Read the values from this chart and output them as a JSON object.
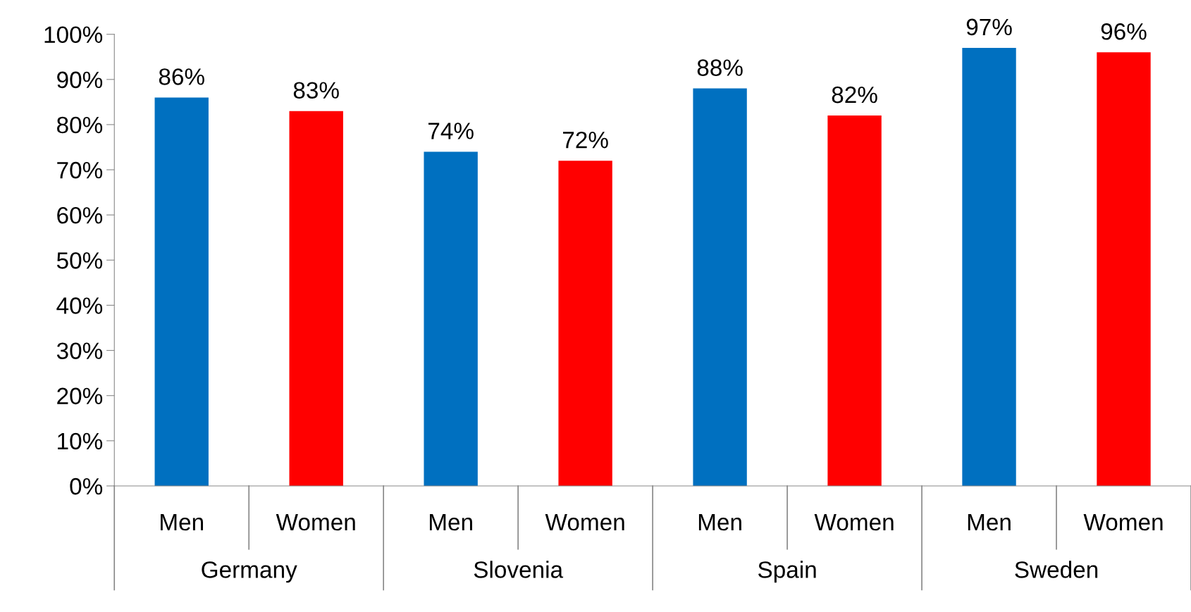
{
  "chart_data": {
    "type": "bar",
    "categories": [
      "Men",
      "Women",
      "Men",
      "Women",
      "Men",
      "Women",
      "Men",
      "Women"
    ],
    "values": [
      86,
      83,
      74,
      72,
      88,
      82,
      97,
      96
    ],
    "colors": [
      "#0070c0",
      "#ff0000",
      "#0070c0",
      "#ff0000",
      "#0070c0",
      "#ff0000",
      "#0070c0",
      "#ff0000"
    ],
    "value_labels": [
      "86%",
      "83%",
      "74%",
      "72%",
      "88%",
      "82%",
      "97%",
      "96%"
    ],
    "annotations": [
      "Germany",
      "Slovenia",
      "Spain",
      "Sweden"
    ],
    "ylim": [
      0,
      100
    ],
    "yticks": [
      {
        "value": 0,
        "label": "0%"
      },
      {
        "value": 10,
        "label": "10%"
      },
      {
        "value": 20,
        "label": "20%"
      },
      {
        "value": 30,
        "label": "30%"
      },
      {
        "value": 40,
        "label": "40%"
      },
      {
        "value": 50,
        "label": "50%"
      },
      {
        "value": 60,
        "label": "60%"
      },
      {
        "value": 70,
        "label": "70%"
      },
      {
        "value": 80,
        "label": "80%"
      },
      {
        "value": 90,
        "label": "90%"
      },
      {
        "value": 100,
        "label": "100%"
      }
    ],
    "grid": false
  }
}
